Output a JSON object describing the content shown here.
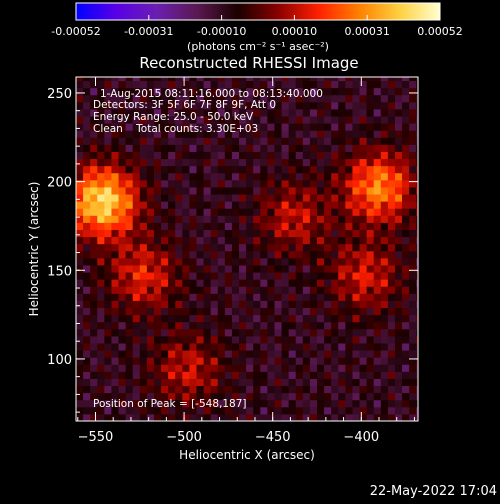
{
  "colorbar": {
    "tick_labels": [
      "-0.00052",
      "-0.00031",
      "-0.00010",
      "0.00010",
      "0.00031",
      "0.00052"
    ],
    "min": -0.00052,
    "max": 0.00052,
    "units_label": "(photons cm⁻² s⁻¹ asec⁻²)",
    "colors": [
      "#0000ff",
      "#5a00e6",
      "#6a1fb0",
      "#5a1850",
      "#1a0000",
      "#8a0000",
      "#ff2000",
      "#ff8000",
      "#ffd040",
      "#ffffd0"
    ]
  },
  "plot": {
    "title": "Reconstructed RHESSI Image",
    "annotations": [
      "1-Aug-2015 08:11:16.000 to 08:13:40.000",
      "Detectors: 3F 5F 6F 7F 8F 9F, Att 0",
      "Energy Range: 25.0 - 50.0 keV",
      "Clean    Total counts: 3.30E+03"
    ],
    "peak_label": "Position of Peak = [-548,187]",
    "footer_date": "22-May-2022 17:04"
  },
  "chart_data": {
    "type": "heatmap",
    "title": "Reconstructed RHESSI Image",
    "xlabel": "Heliocentric X (arcsec)",
    "ylabel": "Heliocentric Y (arcsec)",
    "xlim": [
      -561,
      -368
    ],
    "ylim": [
      65,
      259
    ],
    "x_ticks": [
      -550,
      -500,
      -450,
      -400
    ],
    "y_ticks": [
      100,
      150,
      200,
      250
    ],
    "x_tick_labels": [
      "−550",
      "−500",
      "−450",
      "−400"
    ],
    "y_tick_labels": [
      "100",
      "150",
      "200",
      "250"
    ],
    "value_range": [
      -0.00052,
      0.00052
    ],
    "peak": [
      -548,
      187
    ],
    "sources": [
      {
        "x": -548,
        "y": 187,
        "peak": 0.00052
      },
      {
        "x": -525,
        "y": 145,
        "peak": 0.00024
      },
      {
        "x": -500,
        "y": 92,
        "peak": 0.0002
      },
      {
        "x": -392,
        "y": 195,
        "peak": 0.00038
      },
      {
        "x": -400,
        "y": 145,
        "peak": 0.00022
      },
      {
        "x": -440,
        "y": 178,
        "peak": 0.0002
      }
    ]
  }
}
